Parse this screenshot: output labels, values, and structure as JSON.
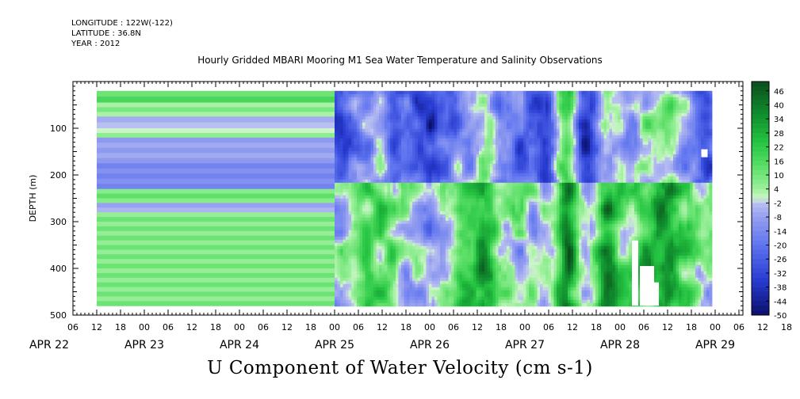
{
  "header": {
    "longitude": "LONGITUDE : 122W(-122)",
    "latitude": "LATITUDE : 36.8N",
    "year": "YEAR : 2012"
  },
  "chart_data": {
    "type": "heatmap",
    "title": "Hourly Gridded MBARI Mooring M1 Sea Water Temperature and Salinity Observations",
    "xlabel": "U Component of Water Velocity (cm s-1)",
    "ylabel": "DEPTH (m)",
    "ylim": [
      500,
      0
    ],
    "yticks": [
      100,
      200,
      300,
      400,
      500
    ],
    "x_hour_ticks": [
      "06",
      "12",
      "18",
      "00",
      "06",
      "12",
      "18",
      "00",
      "06",
      "12",
      "18",
      "00",
      "06",
      "12",
      "18",
      "00",
      "06",
      "12",
      "18",
      "00",
      "06",
      "12",
      "18",
      "00",
      "06",
      "12",
      "18",
      "00",
      "06",
      "12",
      "18",
      "00"
    ],
    "x_day_labels": [
      "APR 22",
      "APR 23",
      "APR 24",
      "APR 25",
      "APR 26",
      "APR 27",
      "APR 28",
      "APR 29"
    ],
    "colorbar": {
      "levels": [
        46,
        40,
        34,
        28,
        22,
        16,
        10,
        4,
        -2,
        -8,
        -14,
        -20,
        -26,
        -32,
        -38,
        -44,
        -50
      ],
      "range": [
        -50,
        50
      ],
      "colors": {
        "strong_pos": "#0b4d1c",
        "pos": "#25c442",
        "weak_pos": "#9cf09c",
        "weak_neg": "#a9b0ee",
        "neg": "#5f74f0",
        "strong_neg": "#0a0f6a"
      }
    },
    "data_depth_range": [
      20,
      480
    ],
    "period_1": {
      "time_range": [
        "APR 22 12:00",
        "APR 25 00:00"
      ],
      "layers": [
        {
          "depth": [
            20,
            45
          ],
          "value": 14
        },
        {
          "depth": [
            45,
            75
          ],
          "value": 6
        },
        {
          "depth": [
            75,
            100
          ],
          "value": -4
        },
        {
          "depth": [
            100,
            120
          ],
          "value": 3
        },
        {
          "depth": [
            120,
            175
          ],
          "value": -8
        },
        {
          "depth": [
            175,
            230
          ],
          "value": -14
        },
        {
          "depth": [
            230,
            260
          ],
          "value": 10
        },
        {
          "depth": [
            260,
            280
          ],
          "value": -6
        },
        {
          "depth": [
            280,
            480
          ],
          "value": 8
        }
      ]
    },
    "period_2": {
      "time_range": [
        "APR 25 00:00",
        "APR 29 00:00"
      ],
      "description_values": "mixed positive and negative velocities",
      "upper_mean": -10,
      "lower_mean": 14
    }
  }
}
